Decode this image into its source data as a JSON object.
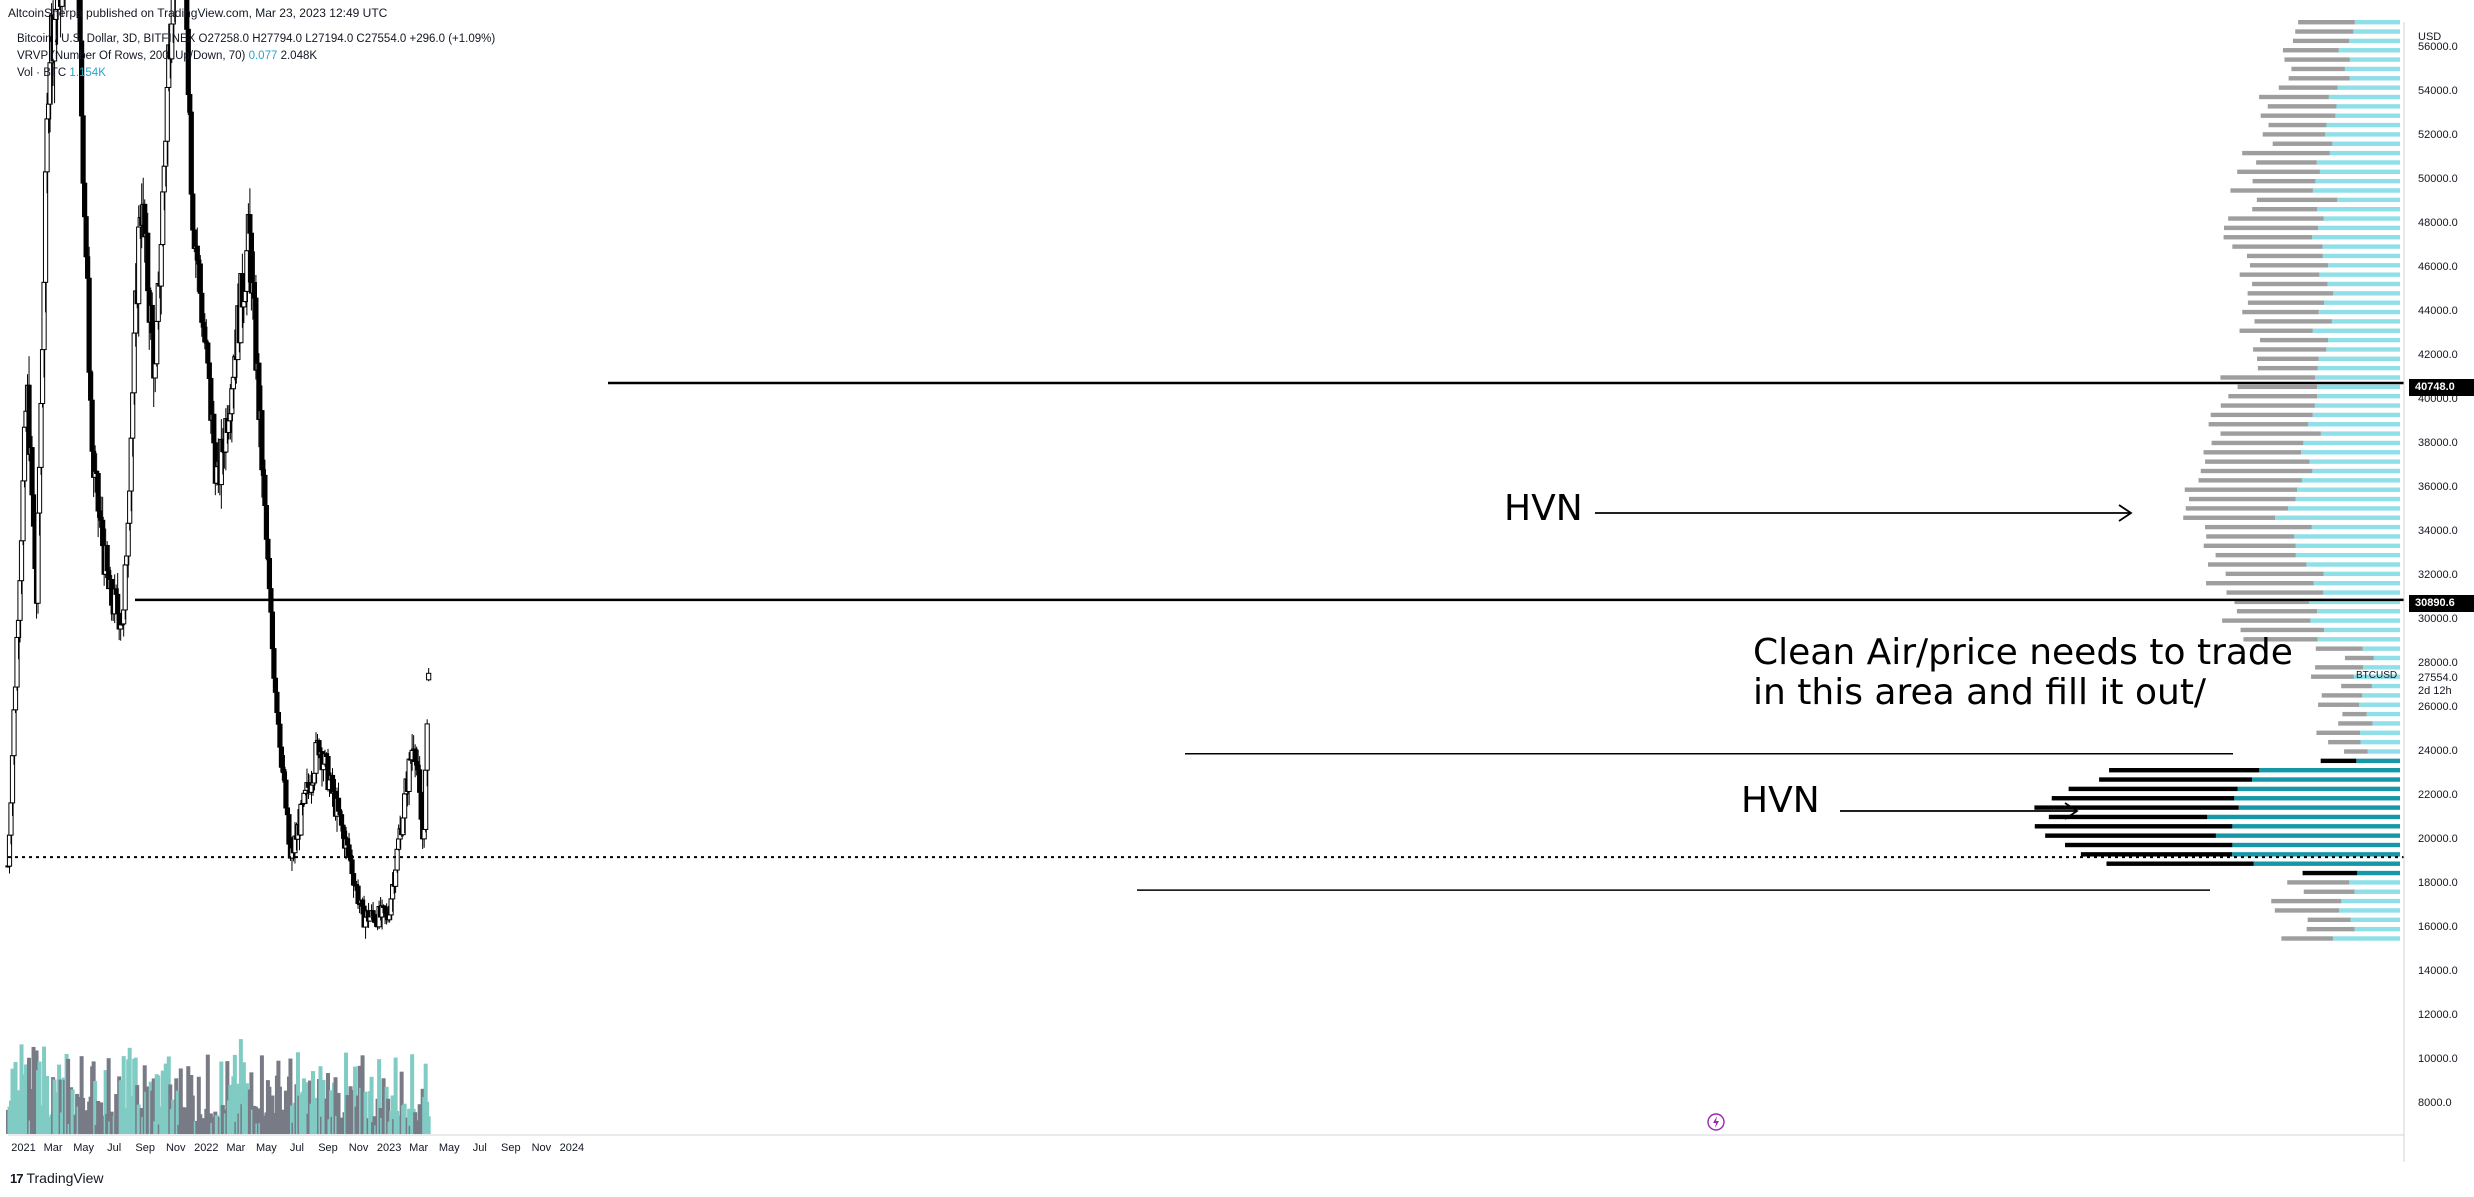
{
  "header": {
    "publisher": "AltcoinSherpa published on TradingView.com, Mar 23, 2023 12:49 UTC",
    "line1": "Bitcoin / U.S. Dollar, 3D, BITFINEX  O27258.0 H27794.0 L27194.0 C27554.0 +296.0 (+1.09%)",
    "line2_prefix": "VRVP (Number Of Rows, 200, Up/Down, 70)",
    "line2_blue": "0.077",
    "line2_suffix": "2.048K",
    "line3_prefix": "Vol · BTC",
    "line3_value": "1.154K"
  },
  "brand": "TradingView",
  "annotations": {
    "hvn_upper": "HVN",
    "hvn_lower": "HVN",
    "note_line1": "Clean Air/price needs to trade",
    "note_line2": "in this area and fill it out/"
  },
  "axis": {
    "currency": "USD",
    "ticks": [
      "56000.0",
      "54000.0",
      "52000.0",
      "50000.0",
      "48000.0",
      "46000.0",
      "44000.0",
      "42000.0",
      "40000.0",
      "38000.0",
      "36000.0",
      "34000.0",
      "32000.0",
      "30000.0",
      "28000.0",
      "26000.0",
      "24000.0",
      "22000.0",
      "20000.0",
      "18000.0",
      "16000.0",
      "14000.0",
      "12000.0",
      "10000.0",
      "8000.0"
    ],
    "level_labels": [
      "40748.0",
      "30890.6"
    ],
    "current_symbol": "BTCUSD",
    "current_price": "27554.0",
    "current_countdown": "2d 12h",
    "x_ticks": [
      "2021",
      "Mar",
      "May",
      "Jul",
      "Sep",
      "Nov",
      "2022",
      "Mar",
      "May",
      "Jul",
      "Sep",
      "Nov",
      "2023",
      "Mar",
      "May",
      "Jul",
      "Sep",
      "Nov",
      "2024"
    ]
  },
  "chart_data": {
    "type": "candlestick",
    "symbol": "BTCUSD",
    "exchange": "BITFINEX",
    "timeframe": "3D",
    "last_bar": {
      "open": 27258.0,
      "high": 27794.0,
      "low": 27194.0,
      "close": 27554.0,
      "change": 296.0,
      "change_pct": 1.09
    },
    "y_range": [
      7000,
      57500
    ],
    "approx_close_path": [
      {
        "date": "2020-12-01",
        "close": 18800
      },
      {
        "date": "2021-01-08",
        "close": 40500
      },
      {
        "date": "2021-01-27",
        "close": 30900
      },
      {
        "date": "2021-02-21",
        "close": 56000
      },
      {
        "date": "2021-04-14",
        "close": 63000
      },
      {
        "date": "2021-05-19",
        "close": 37000
      },
      {
        "date": "2021-06-22",
        "close": 31000
      },
      {
        "date": "2021-07-20",
        "close": 30000
      },
      {
        "date": "2021-08-23",
        "close": 49500
      },
      {
        "date": "2021-09-21",
        "close": 41000
      },
      {
        "date": "2021-11-10",
        "close": 68000
      },
      {
        "date": "2021-12-04",
        "close": 49000
      },
      {
        "date": "2022-01-24",
        "close": 36000
      },
      {
        "date": "2022-03-28",
        "close": 47500
      },
      {
        "date": "2022-05-12",
        "close": 29000
      },
      {
        "date": "2022-06-18",
        "close": 19000
      },
      {
        "date": "2022-08-14",
        "close": 24400
      },
      {
        "date": "2022-10-15",
        "close": 19100
      },
      {
        "date": "2022-11-09",
        "close": 16500
      },
      {
        "date": "2022-12-30",
        "close": 16500
      },
      {
        "date": "2023-02-20",
        "close": 24800
      },
      {
        "date": "2023-03-10",
        "close": 19800
      },
      {
        "date": "2023-03-23",
        "close": 27554
      }
    ],
    "horizontal_levels": [
      40748.0,
      30890.6,
      23900,
      17700
    ],
    "dotted_level": 19200,
    "volume_profile": {
      "rows": 200,
      "mode": "Up/Down",
      "value_area": 70
    },
    "volume_series": {
      "name": "Vol · BTC",
      "last": "1.154K"
    },
    "colors": {
      "up": "#ffffff",
      "down": "#000000",
      "wick": "#000000",
      "vol_up": "#80cbc4",
      "vol_down": "#787b86",
      "vp_up": "#8fdfe8",
      "vp_down": "#9e9e9e",
      "vp_va_up": "#1597a8",
      "vp_va_down": "#000000",
      "accent": "#26a6c8"
    }
  }
}
